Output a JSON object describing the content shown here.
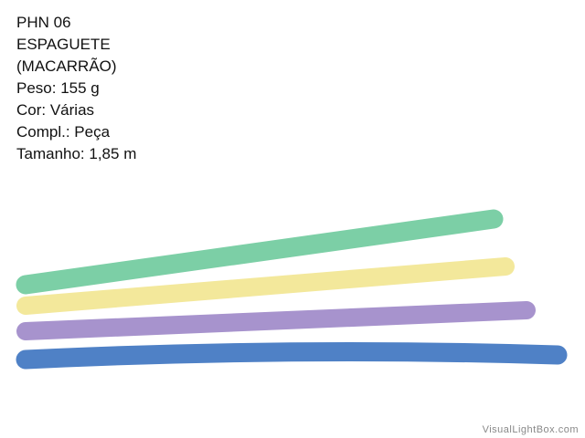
{
  "product": {
    "lines": [
      "PHN 06",
      "ESPAGUETE",
      "(MACARRÃO)",
      "Peso: 155 g",
      "Cor: Várias",
      "Compl.: Peça",
      "Tamanho: 1,85 m"
    ]
  },
  "watermark": "VisualLightBox.com"
}
